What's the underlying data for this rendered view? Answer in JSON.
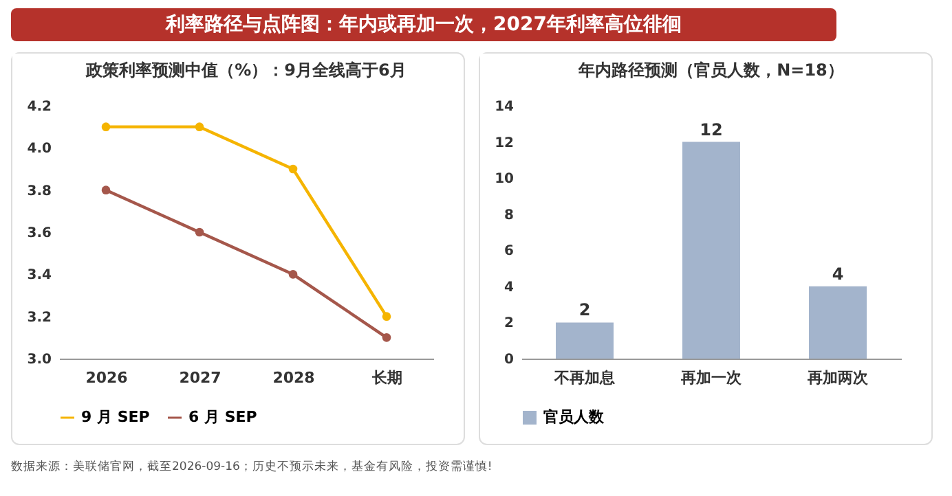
{
  "chart_data": [
    {
      "type": "other",
      "title": "利率路径与点阵图：年内或再加一次，2027年利率高位徘徊",
      "annotations": [
        "数据来源：美联储官网，截至2026-09-16；历史不预示未来，基金有风险，投资需谨慎!"
      ]
    },
    {
      "type": "line",
      "title": "政策利率预测中值（%）：9月全线高于6月",
      "categories": [
        "2026",
        "2027",
        "2028",
        "长期"
      ],
      "series": [
        {
          "name": "9 月 SEP",
          "color": "#f5b400",
          "values": [
            4.1,
            4.1,
            3.9,
            3.2
          ]
        },
        {
          "name": "6 月 SEP",
          "color": "#a5574b",
          "values": [
            3.8,
            3.6,
            3.4,
            3.1
          ]
        }
      ],
      "ylim": [
        3.0,
        4.2
      ],
      "yticks": [
        {
          "value": 3.0,
          "label": "3.0"
        },
        3.2,
        3.4,
        3.6,
        3.8,
        {
          "value": 4.0,
          "label": "4.0"
        },
        4.2
      ],
      "grid": false,
      "legend": "bottom",
      "marker": "circle",
      "line_style": "solid"
    },
    {
      "type": "bar",
      "title": "年内路径预测（官员人数，N=18）",
      "categories": [
        "不再加息",
        "再加一次",
        "再加两次"
      ],
      "series": [
        {
          "name": "官员人数",
          "color": "#a3b4cc",
          "values": [
            2,
            12,
            4
          ]
        }
      ],
      "ylim": [
        0,
        14
      ],
      "yticks": [
        0,
        2,
        4,
        6,
        8,
        10,
        12,
        14
      ],
      "grid": false,
      "legend": "bottom",
      "data_labels": true
    }
  ]
}
